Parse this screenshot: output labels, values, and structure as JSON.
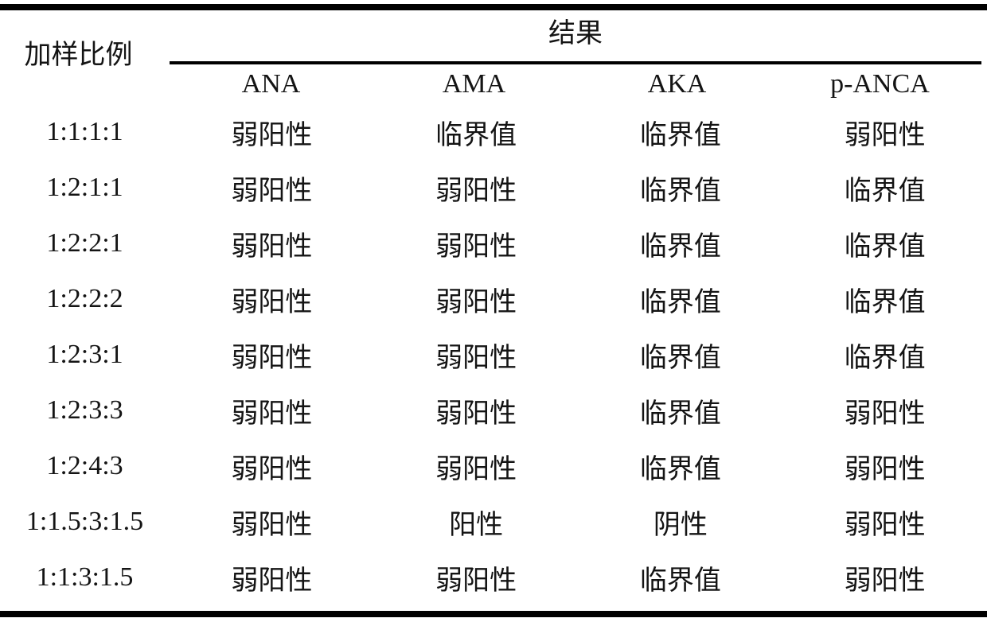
{
  "table": {
    "row_header_label": "加样比例",
    "result_header_label": "结果",
    "columns": [
      "ANA",
      "AMA",
      "AKA",
      "p-ANCA"
    ],
    "rows": [
      {
        "ratio": "1:1:1:1",
        "values": [
          "弱阳性",
          "临界值",
          "临界值",
          "弱阳性"
        ]
      },
      {
        "ratio": "1:2:1:1",
        "values": [
          "弱阳性",
          "弱阳性",
          "临界值",
          "临界值"
        ]
      },
      {
        "ratio": "1:2:2:1",
        "values": [
          "弱阳性",
          "弱阳性",
          "临界值",
          "临界值"
        ]
      },
      {
        "ratio": "1:2:2:2",
        "values": [
          "弱阳性",
          "弱阳性",
          "临界值",
          "临界值"
        ]
      },
      {
        "ratio": "1:2:3:1",
        "values": [
          "弱阳性",
          "弱阳性",
          "临界值",
          "临界值"
        ]
      },
      {
        "ratio": "1:2:3:3",
        "values": [
          "弱阳性",
          "弱阳性",
          "临界值",
          "弱阳性"
        ]
      },
      {
        "ratio": "1:2:4:3",
        "values": [
          "弱阳性",
          "弱阳性",
          "临界值",
          "弱阳性"
        ]
      },
      {
        "ratio": "1:1.5:3:1.5",
        "values": [
          "弱阳性",
          "阳性",
          "阴性",
          "弱阳性"
        ]
      },
      {
        "ratio": "1:1:3:1.5",
        "values": [
          "弱阳性",
          "弱阳性",
          "临界值",
          "弱阳性"
        ]
      }
    ],
    "colors": {
      "text": "#141414",
      "background": "#ffffff",
      "rule": "#000000"
    }
  }
}
